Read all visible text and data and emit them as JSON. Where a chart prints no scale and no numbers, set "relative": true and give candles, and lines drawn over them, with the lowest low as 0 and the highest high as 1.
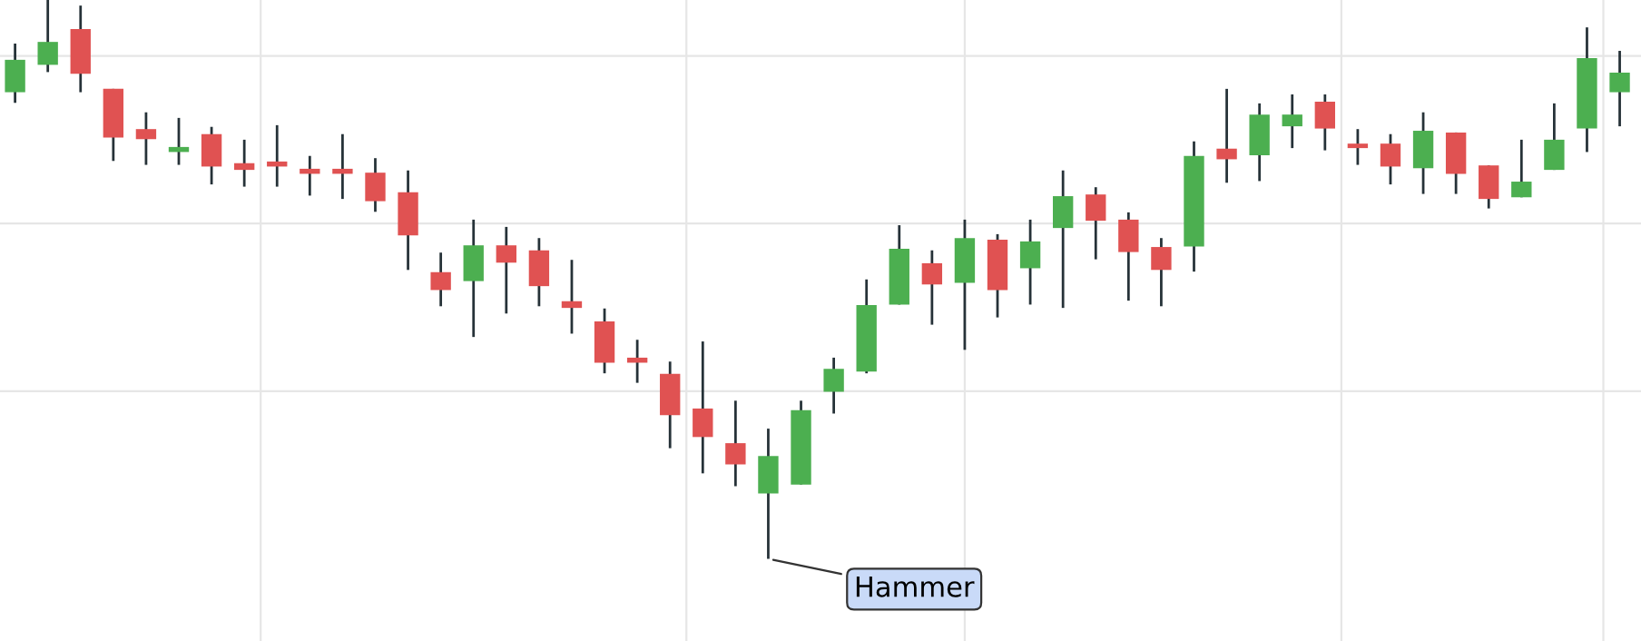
{
  "chart_data": {
    "type": "candlestick",
    "relative": true,
    "grid": true,
    "tick_labels": false,
    "categories": [
      null,
      null,
      null,
      null,
      null,
      null,
      null,
      null,
      null,
      null,
      null,
      null,
      null,
      null,
      null,
      null,
      null,
      null,
      null,
      null,
      null,
      null,
      null,
      null,
      null,
      null,
      null,
      null,
      null,
      null,
      null,
      null,
      null,
      null,
      null,
      null,
      null,
      null,
      null,
      null,
      null,
      null,
      null,
      null,
      null,
      null,
      null,
      null,
      null,
      null
    ],
    "ohlc": [
      [
        0.835,
        0.922,
        0.816,
        0.893
      ],
      [
        0.884,
        1,
        0.871,
        0.925
      ],
      [
        0.948,
        0.99,
        0.835,
        0.868
      ],
      [
        0.841,
        0.841,
        0.712,
        0.754
      ],
      [
        0.769,
        0.799,
        0.705,
        0.751
      ],
      [
        0.728,
        0.789,
        0.705,
        0.737
      ],
      [
        0.76,
        0.773,
        0.67,
        0.702
      ],
      [
        0.708,
        0.75,
        0.666,
        0.696
      ],
      [
        0.711,
        0.776,
        0.666,
        0.702
      ],
      [
        0.698,
        0.721,
        0.65,
        0.689
      ],
      [
        0.698,
        0.76,
        0.644,
        0.689
      ],
      [
        0.691,
        0.717,
        0.621,
        0.64
      ],
      [
        0.656,
        0.695,
        0.517,
        0.579
      ],
      [
        0.513,
        0.548,
        0.452,
        0.481
      ],
      [
        0.497,
        0.607,
        0.397,
        0.561
      ],
      [
        0.561,
        0.594,
        0.439,
        0.53
      ],
      [
        0.552,
        0.574,
        0.452,
        0.488
      ],
      [
        0.461,
        0.535,
        0.403,
        0.449
      ],
      [
        0.425,
        0.448,
        0.332,
        0.351
      ],
      [
        0.36,
        0.392,
        0.315,
        0.351
      ],
      [
        0.331,
        0.353,
        0.198,
        0.257
      ],
      [
        0.269,
        0.389,
        0.153,
        0.218
      ],
      [
        0.207,
        0.283,
        0.13,
        0.169
      ],
      [
        0.117,
        0.233,
        0,
        0.184
      ],
      [
        0.133,
        0.283,
        0.133,
        0.266
      ],
      [
        0.299,
        0.36,
        0.26,
        0.34
      ],
      [
        0.335,
        0.5,
        0.332,
        0.454
      ],
      [
        0.455,
        0.597,
        0.455,
        0.555
      ],
      [
        0.529,
        0.552,
        0.419,
        0.491
      ],
      [
        0.494,
        0.607,
        0.374,
        0.574
      ],
      [
        0.571,
        0.581,
        0.432,
        0.481
      ],
      [
        0.52,
        0.607,
        0.455,
        0.568
      ],
      [
        0.592,
        0.695,
        0.449,
        0.649
      ],
      [
        0.652,
        0.665,
        0.536,
        0.605
      ],
      [
        0.607,
        0.62,
        0.462,
        0.549
      ],
      [
        0.558,
        0.574,
        0.452,
        0.517
      ],
      [
        0.559,
        0.747,
        0.514,
        0.721
      ],
      [
        0.734,
        0.841,
        0.673,
        0.715
      ],
      [
        0.722,
        0.815,
        0.676,
        0.795
      ],
      [
        0.774,
        0.831,
        0.735,
        0.795
      ],
      [
        0.818,
        0.831,
        0.731,
        0.77
      ],
      [
        0.743,
        0.769,
        0.705,
        0.735
      ],
      [
        0.743,
        0.76,
        0.67,
        0.702
      ],
      [
        0.699,
        0.799,
        0.653,
        0.766
      ],
      [
        0.763,
        0.763,
        0.653,
        0.689
      ],
      [
        0.704,
        0.704,
        0.627,
        0.644
      ],
      [
        0.647,
        0.75,
        0.647,
        0.675
      ],
      [
        0.696,
        0.815,
        0.696,
        0.75
      ],
      [
        0.77,
        0.951,
        0.728,
        0.896
      ],
      [
        0.835,
        0.909,
        0.774,
        0.87
      ]
    ],
    "colors": [
      "#4caf50",
      "#4caf50",
      "#e05252",
      "#e05252",
      "#e05252",
      "#4caf50",
      "#e05252",
      "#e05252",
      "#e05252",
      "#e05252",
      "#e05252",
      "#e05252",
      "#e05252",
      "#e05252",
      "#4caf50",
      "#e05252",
      "#e05252",
      "#e05252",
      "#e05252",
      "#e05252",
      "#e05252",
      "#e05252",
      "#e05252",
      "#4caf50",
      "#4caf50",
      "#4caf50",
      "#4caf50",
      "#4caf50",
      "#e05252",
      "#4caf50",
      "#e05252",
      "#4caf50",
      "#4caf50",
      "#e05252",
      "#e05252",
      "#e05252",
      "#4caf50",
      "#e05252",
      "#4caf50",
      "#4caf50",
      "#e05252",
      "#e05252",
      "#e05252",
      "#4caf50",
      "#e05252",
      "#e05252",
      "#4caf50",
      "#4caf50",
      "#4caf50",
      "#4caf50"
    ],
    "annotations": [
      "Hammer"
    ]
  }
}
